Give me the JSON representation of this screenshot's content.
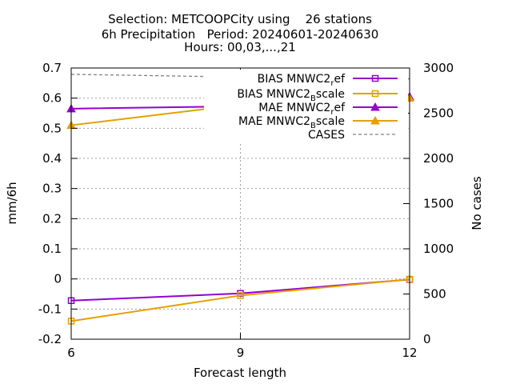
{
  "chart_data": {
    "type": "line",
    "title_lines": [
      "Selection: METCOOPCity using    26 stations",
      "6h Precipitation   Period: 20240601-20240630",
      "Hours: 00,03,...,21"
    ],
    "xlabel": "Forecast length",
    "ylabel": "mm/6h",
    "y2label": "No cases",
    "x": [
      6,
      9,
      12
    ],
    "xlim": [
      6,
      12
    ],
    "xticks": [
      "6",
      "9",
      "12"
    ],
    "ylim": [
      -0.2,
      0.7
    ],
    "yticks": [
      "-0.2",
      "-0.1",
      "0",
      "0.1",
      "0.2",
      "0.3",
      "0.4",
      "0.5",
      "0.6",
      "0.7"
    ],
    "y2lim": [
      0,
      3000
    ],
    "y2ticks": [
      "0",
      "500",
      "1000",
      "1500",
      "2000",
      "2500",
      "3000"
    ],
    "grid": true,
    "legend_position": "top-right",
    "series": [
      {
        "name": "BIAS MNWC2_ref",
        "legend_main": "BIAS MNWC2",
        "legend_sub": "r",
        "legend_tail": "ef",
        "axis": "y1",
        "values": [
          -0.072,
          -0.048,
          -0.002
        ],
        "color": "#9400d3",
        "marker": "square",
        "dash": false
      },
      {
        "name": "BIAS MNWC2_Bscale",
        "legend_main": "BIAS MNWC2",
        "legend_sub": "B",
        "legend_tail": "scale",
        "axis": "y1",
        "values": [
          -0.14,
          -0.055,
          -0.001
        ],
        "color": "#e69f00",
        "marker": "square",
        "dash": false
      },
      {
        "name": "MAE MNWC2_ref",
        "legend_main": "MAE MNWC2",
        "legend_sub": "r",
        "legend_tail": "ef",
        "axis": "y1",
        "values": [
          0.565,
          0.573,
          0.605
        ],
        "color": "#9400d3",
        "marker": "triangle",
        "dash": false
      },
      {
        "name": "MAE MNWC2_Bscale",
        "legend_main": "MAE MNWC2",
        "legend_sub": "B",
        "legend_tail": "scale",
        "axis": "y1",
        "values": [
          0.51,
          0.578,
          0.6
        ],
        "color": "#e69f00",
        "marker": "triangle",
        "dash": false
      },
      {
        "name": "CASES",
        "legend_main": "CASES",
        "legend_sub": "",
        "legend_tail": "",
        "axis": "y2",
        "values": [
          2930,
          2900,
          2880
        ],
        "color": "#808080",
        "marker": "none",
        "dash": true
      }
    ]
  }
}
